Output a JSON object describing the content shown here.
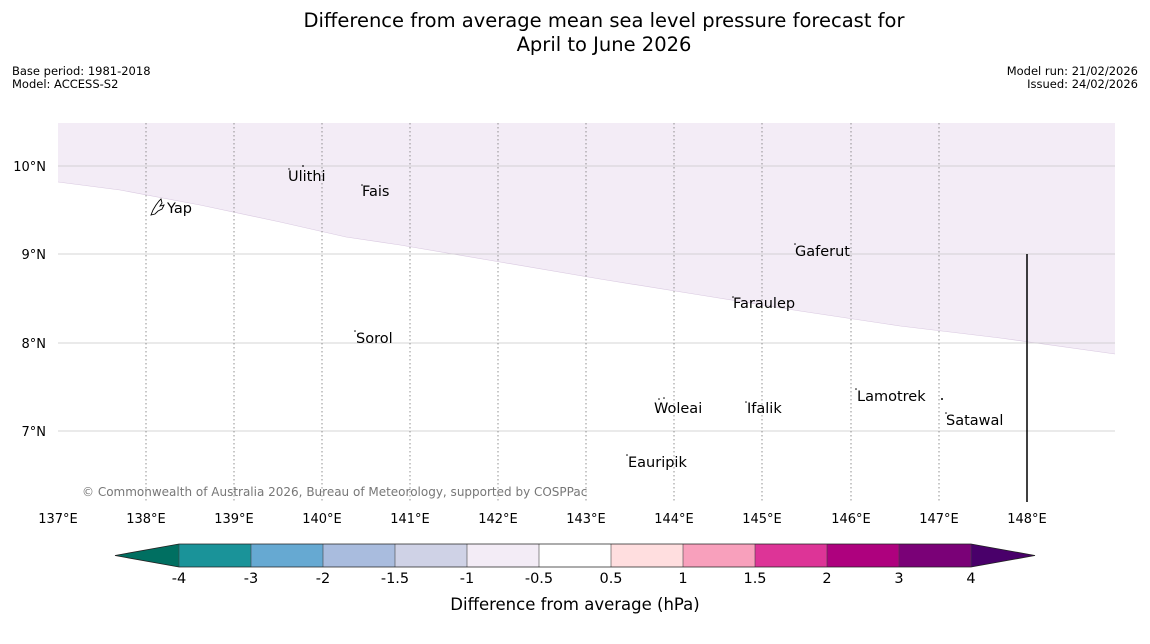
{
  "header": {
    "title_line1": "Difference from average mean sea level pressure forecast for",
    "title_line2": "April to June 2026",
    "base_period": "Base period: 1981-2018",
    "model": "Model: ACCESS-S2",
    "model_run": "Model run: 21/02/2026",
    "issued": "Issued: 24/02/2026"
  },
  "map": {
    "lat_ticks": [
      "10°N",
      "9°N",
      "8°N",
      "7°N"
    ],
    "lon_ticks": [
      "137°E",
      "138°E",
      "139°E",
      "140°E",
      "141°E",
      "142°E",
      "143°E",
      "144°E",
      "145°E",
      "146°E",
      "147°E",
      "148°E"
    ],
    "places": [
      "Yap",
      "Ulithi",
      "Fais",
      "Gaferut",
      "Faraulep",
      "Sorol",
      "Woleai",
      "Ifalik",
      "Lamotrek",
      "Satawal",
      "Eauripik"
    ],
    "shaded_region_color": "#f3ecf6",
    "copyright": "© Commonwealth of Australia 2026, Bureau of Meteorology, supported by COSPPac"
  },
  "colorbar": {
    "title": "Difference from average (hPa)",
    "labels": [
      "-4",
      "-3",
      "-2",
      "-1.5",
      "-1",
      "-0.5",
      "0.5",
      "1",
      "1.5",
      "2",
      "3",
      "4"
    ],
    "colors": [
      "#006f61",
      "#1a9399",
      "#66a9d2",
      "#a9bcde",
      "#cfd2e6",
      "#f3ecf6",
      "#ffffff",
      "#ffdedf",
      "#f8a0bc",
      "#dd3497",
      "#ae017e",
      "#7a0177",
      "#49006a"
    ]
  }
}
